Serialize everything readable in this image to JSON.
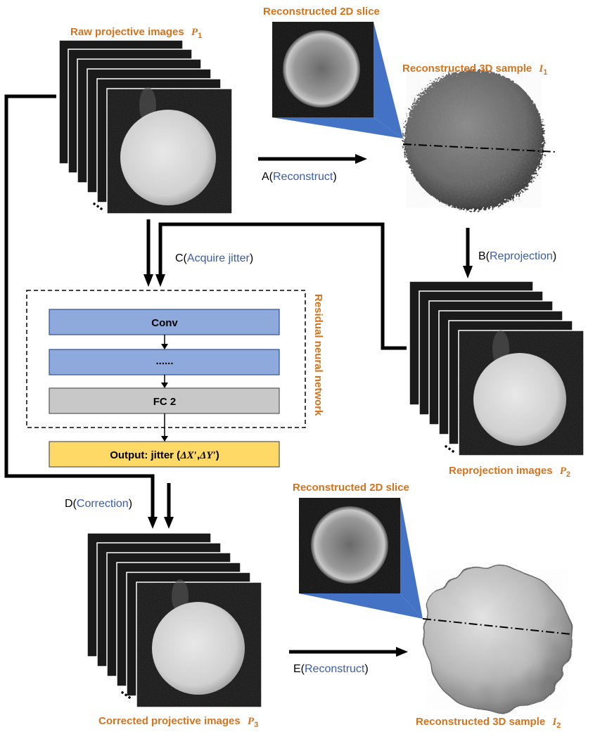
{
  "labels": {
    "raw": "Raw projective images",
    "raw_sym": "P",
    "raw_sub": "1",
    "slice_top": "Reconstructed 2D slice",
    "sample_top": "Reconstructed 3D sample",
    "sample_top_sym": "I",
    "sample_top_sub": "1",
    "reproj": "Reprojection images",
    "reproj_sym": "P",
    "reproj_sub": "2",
    "slice_bottom": "Reconstructed 2D slice",
    "corrected": "Corrected projective images",
    "corrected_sym": "P",
    "corrected_sub": "3",
    "sample_bottom": "Reconstructed 3D sample",
    "sample_bottom_sym": "I",
    "sample_bottom_sub": "2",
    "dots": "..."
  },
  "steps": {
    "a_letter": "A(",
    "a_name": "Reconstruct",
    "b_letter": "B(",
    "b_name": "Reprojection",
    "c_letter": "C(",
    "c_name": "Acquire jitter",
    "d_letter": "D(",
    "d_name": "Correction",
    "e_letter": "E(",
    "e_name": "Reconstruct",
    "close": ")"
  },
  "network": {
    "title": "Residual neural network",
    "layer1": "Conv",
    "layer2": "......",
    "layer3": "FC 2",
    "output_prefix": "Output: jitter (",
    "output_dx": "ΔX′",
    "output_sep": ",",
    "output_dy": "ΔY′",
    "output_suffix": ")"
  },
  "colors": {
    "label_orange": "#d4731e",
    "step_blue": "#3b5ca8",
    "layer_blue": "#8ea9db",
    "layer_gray": "#c8c8c8",
    "output_yellow": "#ffd966",
    "wedge_blue": "#4472c4"
  }
}
